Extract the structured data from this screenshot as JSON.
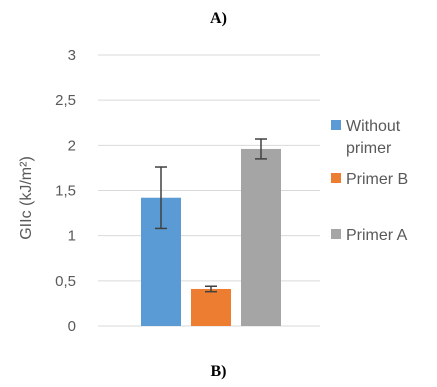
{
  "panel_labels": {
    "top": "A)",
    "bottom": "B)"
  },
  "chart_data": {
    "type": "bar",
    "categories": [
      ""
    ],
    "series": [
      {
        "name": "Without primer",
        "name_lines": [
          "Without",
          "primer"
        ],
        "value": 1.42,
        "error": 0.34,
        "color": "#5B9BD5"
      },
      {
        "name": "Primer B",
        "name_lines": [
          "Primer B"
        ],
        "value": 0.41,
        "error": 0.03,
        "color": "#ED7D31"
      },
      {
        "name": "Primer A",
        "name_lines": [
          "Primer A"
        ],
        "value": 1.96,
        "error": 0.11,
        "color": "#A5A5A5"
      }
    ],
    "ylabel": "GIIc (kJ/m²)",
    "ylim": [
      0,
      3
    ],
    "yticks": [
      0,
      0.5,
      1,
      1.5,
      2,
      2.5,
      3
    ],
    "ytick_labels": [
      "0",
      "0,5",
      "1",
      "1,5",
      "2",
      "2,5",
      "3"
    ],
    "grid": true,
    "legend_position": "right",
    "error_bar_color": "#404040"
  }
}
